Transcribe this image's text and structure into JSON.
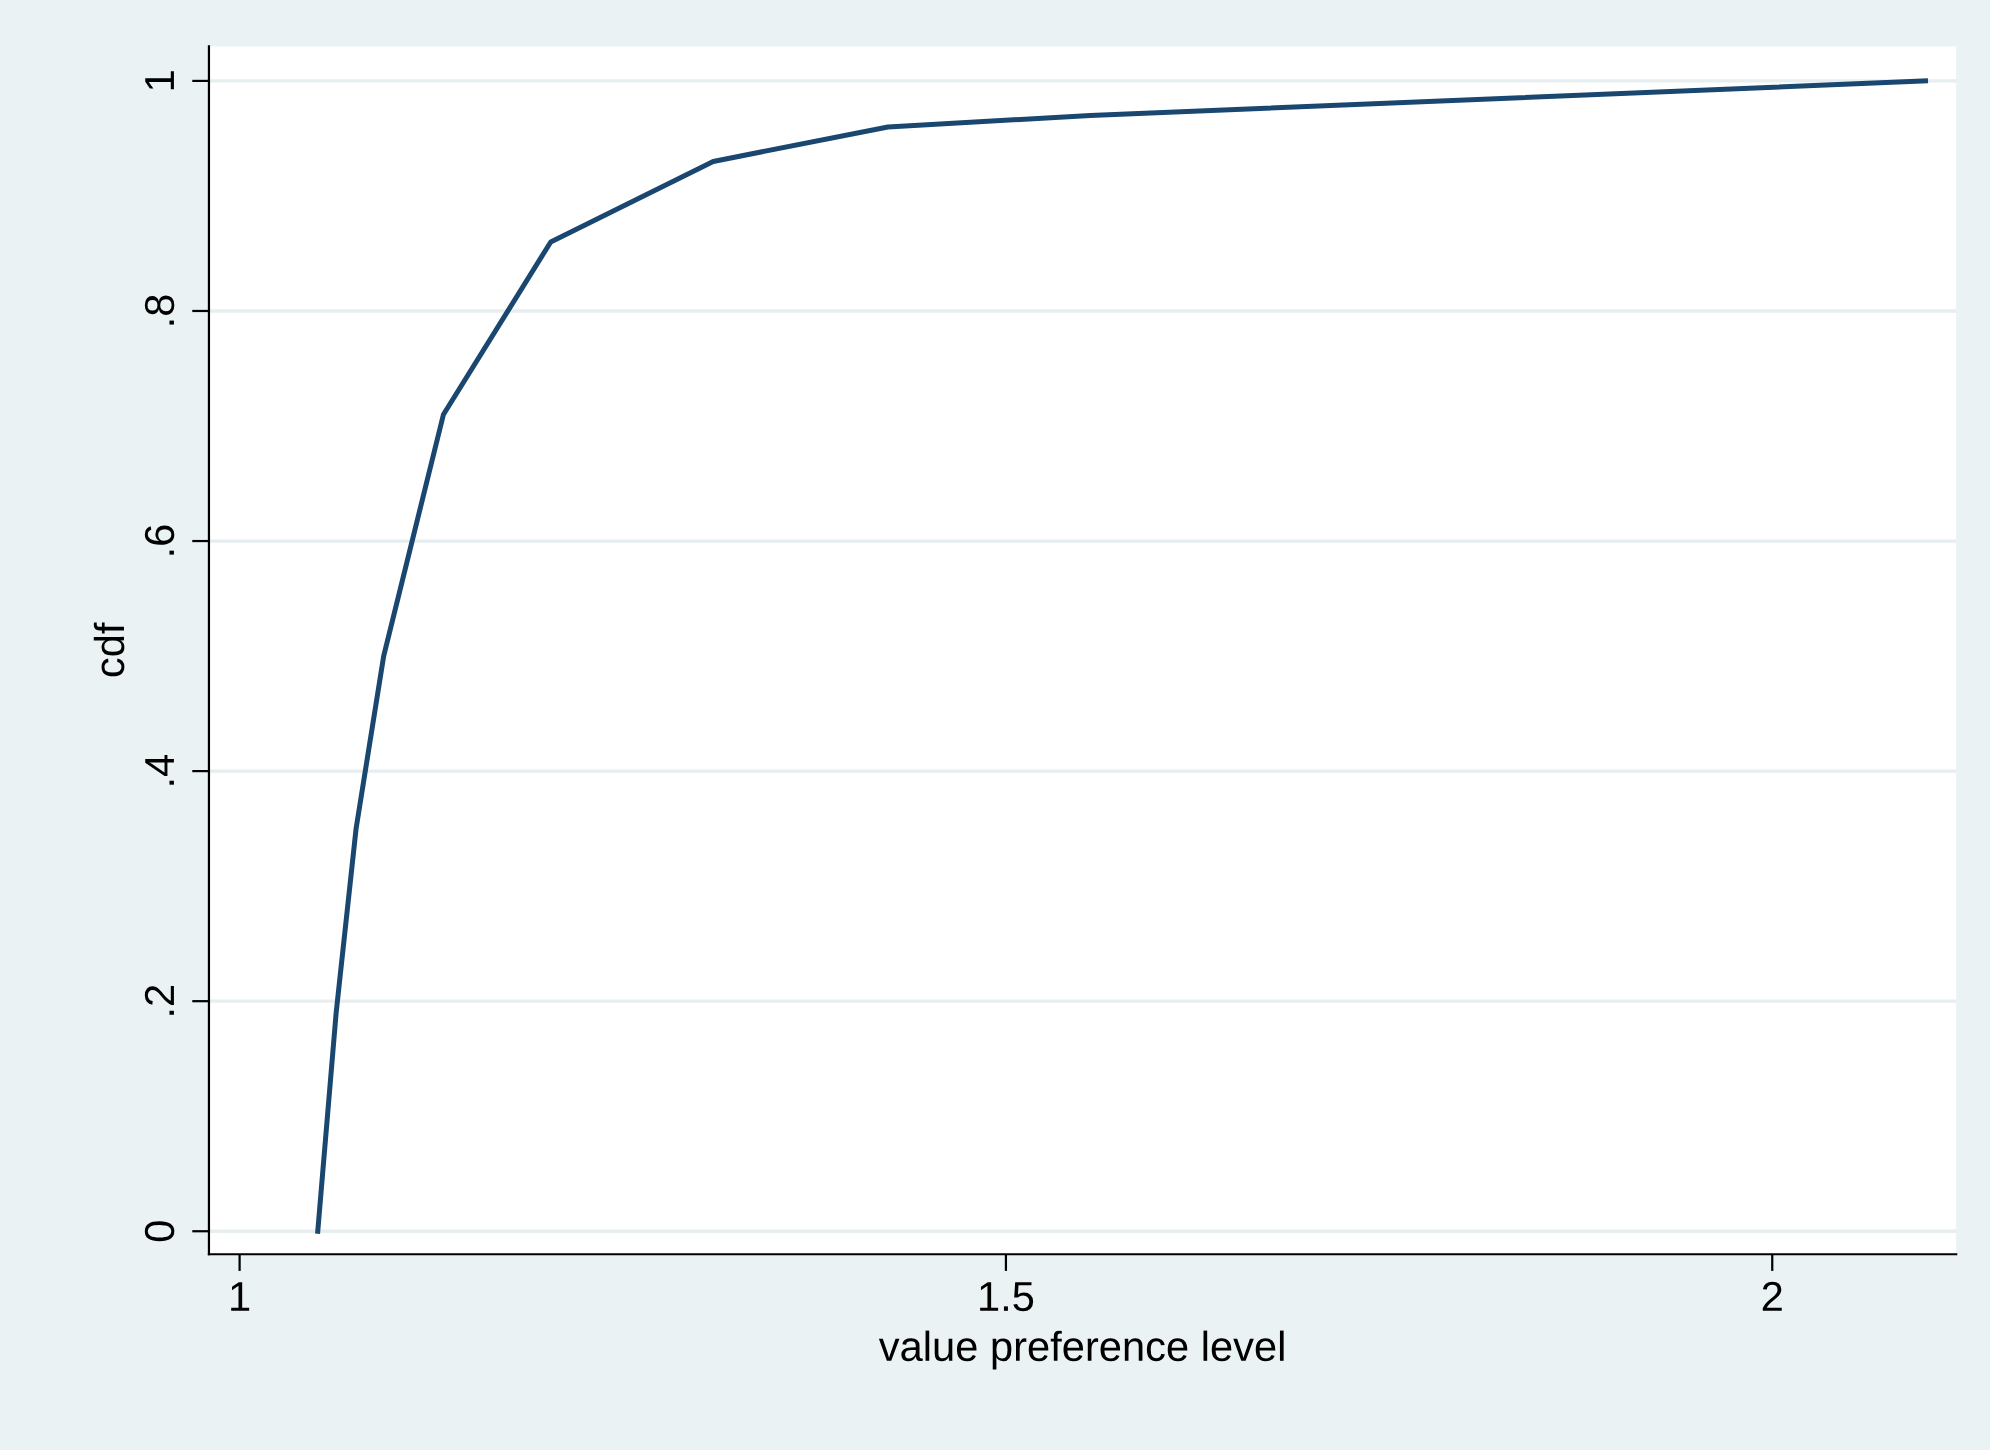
{
  "chart_data": {
    "type": "line",
    "xlabel": "value preference level",
    "ylabel": "cdf",
    "x": [
      1.051,
      1.063,
      1.076,
      1.094,
      1.133,
      1.203,
      1.309,
      1.423,
      1.555,
      2.1
    ],
    "series": [
      {
        "color": "#1a476f",
        "values": [
          0,
          0.19,
          0.35,
          0.5,
          0.71,
          0.86,
          0.93,
          0.96,
          0.97,
          1.0
        ]
      }
    ],
    "xlim": [
      0.98,
      2.12
    ],
    "ylim": [
      -0.02,
      1.03
    ],
    "xticks": [
      1,
      1.5,
      2
    ],
    "yticks": [
      0,
      {
        "value": 0.2,
        "label": ".2"
      },
      {
        "value": 0.4,
        "label": ".4"
      },
      {
        "value": 0.6,
        "label": ".6"
      },
      {
        "value": 0.8,
        "label": ".8"
      },
      1
    ],
    "grid": "y",
    "marker": "none",
    "line_style": "solid"
  }
}
